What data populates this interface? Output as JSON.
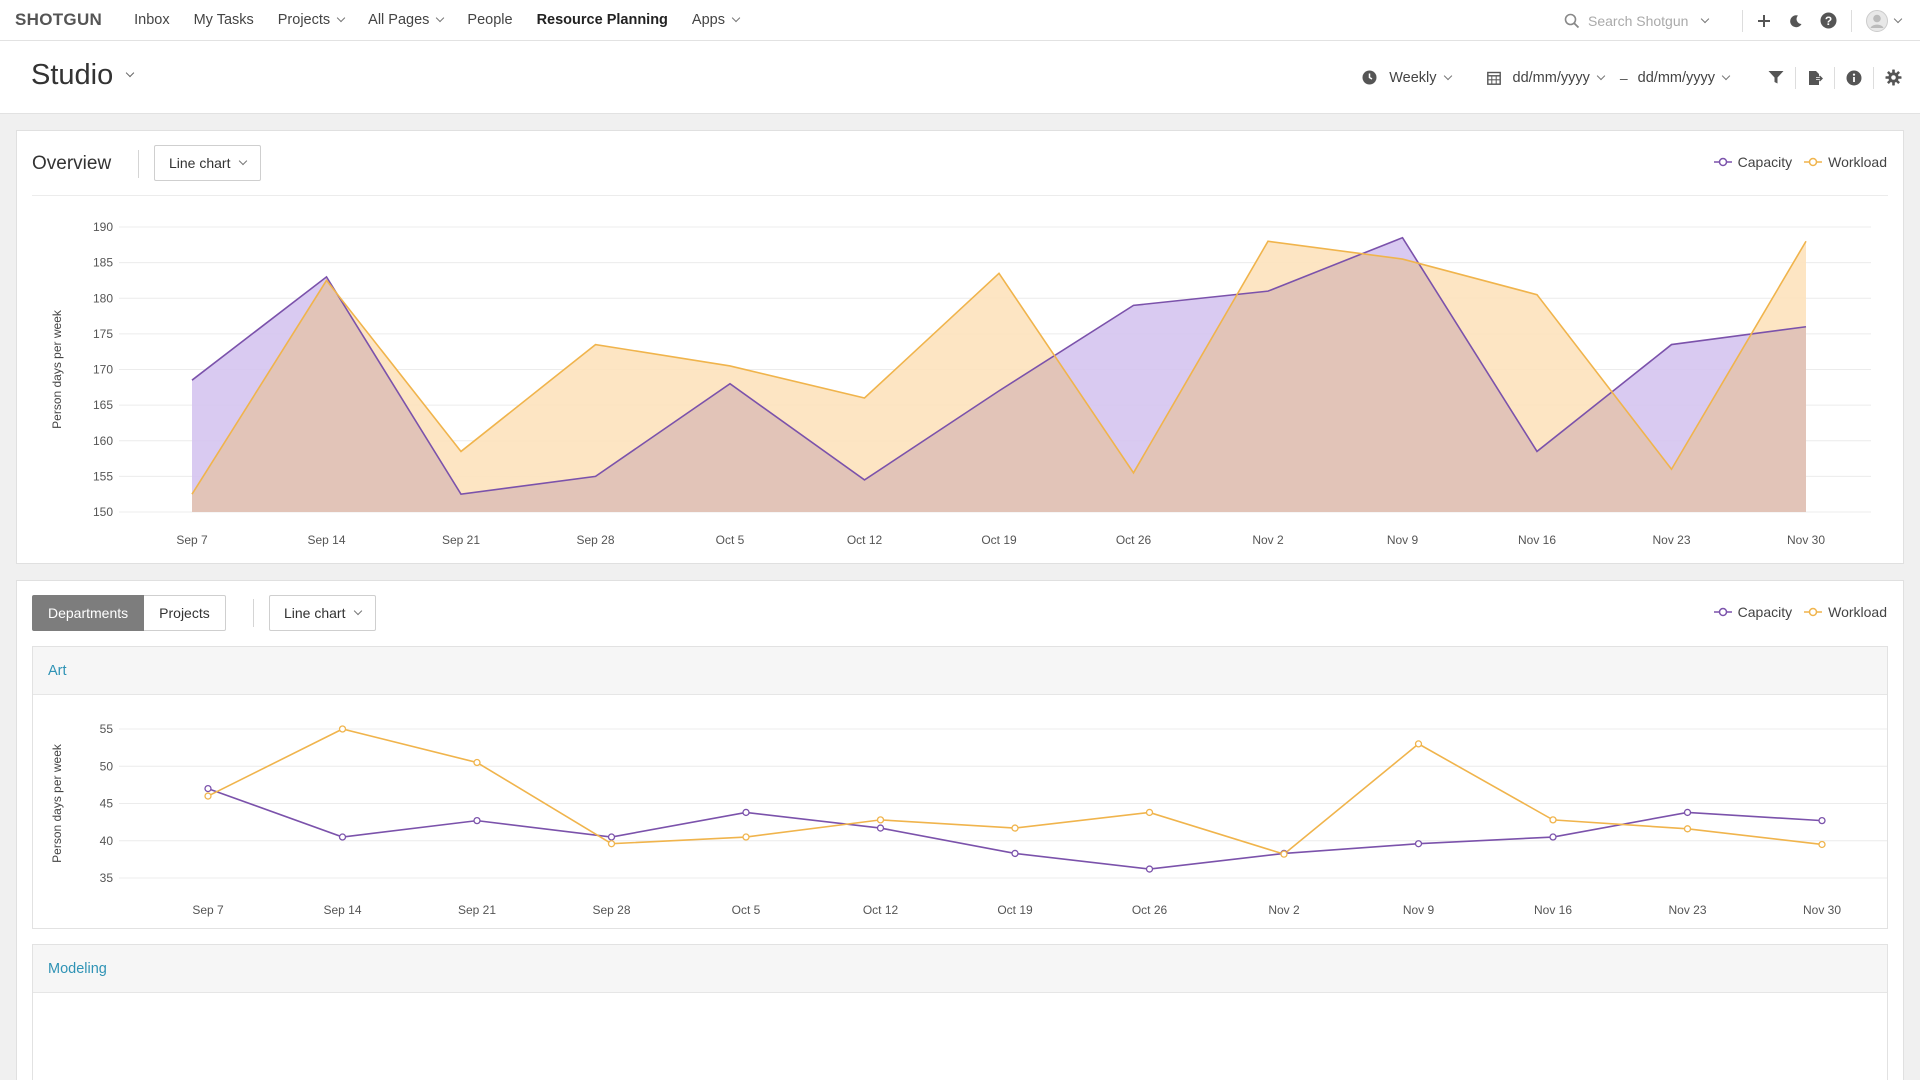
{
  "topnav": {
    "logo": "SHOTGUN",
    "items": [
      {
        "label": "Inbox"
      },
      {
        "label": "My Tasks"
      },
      {
        "label": "Projects"
      },
      {
        "label": "All Pages"
      },
      {
        "label": "People"
      },
      {
        "label": "Resource Planning"
      },
      {
        "label": "Apps"
      }
    ],
    "search_placeholder": "Search Shotgun"
  },
  "page": {
    "title": "Studio",
    "period": "Weekly",
    "date_start": "dd/mm/yyyy",
    "date_sep": "–",
    "date_end": "dd/mm/yyyy"
  },
  "overview": {
    "title": "Overview",
    "chart_type_label": "Line chart",
    "legend": {
      "capacity": "Capacity",
      "workload": "Workload"
    }
  },
  "breakdown": {
    "tabs": [
      {
        "label": "Departments"
      },
      {
        "label": "Projects"
      }
    ],
    "chart_type_label": "Line chart",
    "legend": {
      "capacity": "Capacity",
      "workload": "Workload"
    },
    "groups": [
      {
        "name": "Art"
      },
      {
        "name": "Modeling"
      }
    ]
  },
  "colors": {
    "capacity": "#7b52ab",
    "workload": "#f0b44c",
    "capacity_fill": "#d5c4ef",
    "workload_fill": "#fde2bd",
    "overlap_fill": "#e2c4b8"
  },
  "chart_data": [
    {
      "type": "area",
      "title": "Overview",
      "ylabel": "Person days per week",
      "ylim": [
        150,
        190
      ],
      "yticks": [
        150,
        155,
        160,
        165,
        170,
        175,
        180,
        185,
        190
      ],
      "categories": [
        "Sep 7",
        "Sep 14",
        "Sep 21",
        "Sep 28",
        "Oct 5",
        "Oct 12",
        "Oct 19",
        "Oct 26",
        "Nov 2",
        "Nov 9",
        "Nov 16",
        "Nov 23",
        "Nov 30"
      ],
      "series": [
        {
          "name": "Capacity",
          "values": [
            168.5,
            183,
            152.5,
            155,
            168,
            154.5,
            167,
            179,
            181,
            188.5,
            158.5,
            173.5,
            176
          ]
        },
        {
          "name": "Workload",
          "values": [
            152.5,
            182.5,
            158.5,
            173.5,
            170.5,
            166,
            183.5,
            155.5,
            188,
            185.5,
            180.5,
            156,
            188
          ]
        }
      ],
      "grid": true,
      "legend": "top-right"
    },
    {
      "type": "line",
      "title": "Art",
      "ylabel": "Person days per week",
      "ylim": [
        35,
        55
      ],
      "yticks": [
        35,
        40,
        45,
        50,
        55
      ],
      "categories": [
        "Sep 7",
        "Sep 14",
        "Sep 21",
        "Sep 28",
        "Oct 5",
        "Oct 12",
        "Oct 19",
        "Oct 26",
        "Nov 2",
        "Nov 9",
        "Nov 16",
        "Nov 23",
        "Nov 30"
      ],
      "series": [
        {
          "name": "Capacity",
          "values": [
            47,
            40.5,
            42.7,
            40.5,
            43.8,
            41.7,
            38.3,
            36.2,
            38.3,
            39.6,
            40.5,
            43.8,
            42.7
          ]
        },
        {
          "name": "Workload",
          "values": [
            46,
            55,
            50.5,
            39.6,
            40.5,
            42.8,
            41.7,
            43.8,
            38.2,
            53,
            42.8,
            41.6,
            39.5
          ]
        }
      ],
      "grid": true,
      "legend": "top-right"
    }
  ]
}
